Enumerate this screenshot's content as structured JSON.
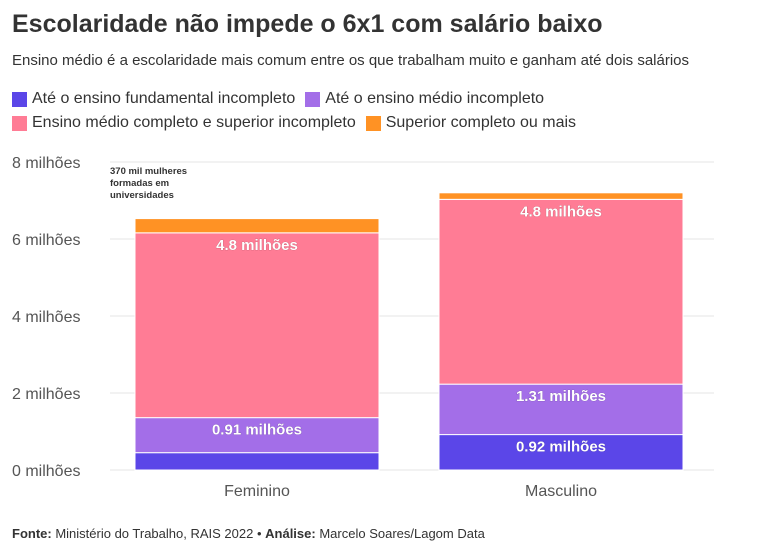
{
  "title": "Escolaridade não impede o 6x1 com salário baixo",
  "subtitle": "Ensino médio é a escolaridade mais comum entre os que trabalham muito e ganham até dois salários",
  "footer": {
    "source_label": "Fonte:",
    "source_text": "Ministério do Trabalho, RAIS 2022 •",
    "analysis_label": "Análise:",
    "analysis_text": "Marcelo Soares/Lagom Data"
  },
  "chart_data": {
    "type": "bar",
    "stacked": true,
    "categories": [
      "Feminino",
      "Masculino"
    ],
    "series": [
      {
        "name": "Até o ensino fundamental incompleto",
        "color": "#5b46e8",
        "values": [
          0.45,
          0.92
        ],
        "labels": [
          "",
          "0.92 milhões"
        ]
      },
      {
        "name": "Até o ensino médio incompleto",
        "color": "#a36ee8",
        "values": [
          0.91,
          1.31
        ],
        "labels": [
          "0.91 milhões",
          "1.31 milhões"
        ]
      },
      {
        "name": "Ensino médio completo e superior incompleto",
        "color": "#ff7c95",
        "values": [
          4.8,
          4.8
        ],
        "labels": [
          "4.8 milhões",
          "4.8 milhões"
        ]
      },
      {
        "name": "Superior completo ou mais",
        "color": "#ff9224",
        "values": [
          0.37,
          0.17
        ],
        "labels": [
          "",
          ""
        ]
      }
    ],
    "ylim": [
      0,
      8
    ],
    "yticks": [
      {
        "value": 0,
        "label": "0 milhões"
      },
      {
        "value": 2,
        "label": "2 milhões"
      },
      {
        "value": 4,
        "label": "4 milhões"
      },
      {
        "value": 6,
        "label": "6 milhões"
      },
      {
        "value": 8,
        "label": "8 milhões"
      }
    ],
    "annotation": {
      "category": "Feminino",
      "lines": [
        "370 mil mulheres",
        "formadas em",
        "universidades"
      ]
    },
    "grid": true,
    "legend_position": "top-left"
  }
}
